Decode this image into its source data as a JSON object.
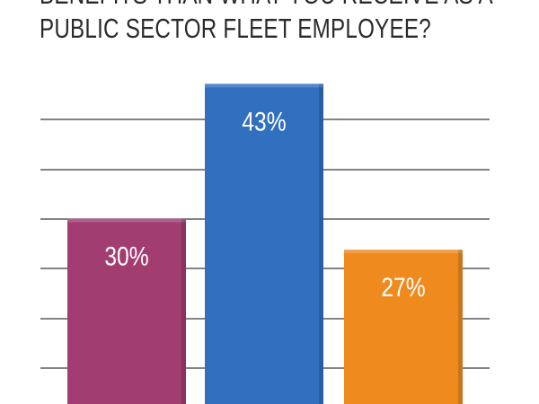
{
  "chart_data": {
    "type": "bar",
    "title_lines": [
      "BENEFITS THAN WHAT YOU RECEIVE AS A",
      "PUBLIC SECTOR FLEET EMPLOYEE?"
    ],
    "categories": [
      "",
      "",
      ""
    ],
    "values": [
      30,
      43,
      27
    ],
    "data_labels": [
      "30%",
      "43%",
      "27%"
    ],
    "colors": [
      "#a23d72",
      "#3170bf",
      "#ef8a1f"
    ],
    "grid": true,
    "legend": "none"
  }
}
